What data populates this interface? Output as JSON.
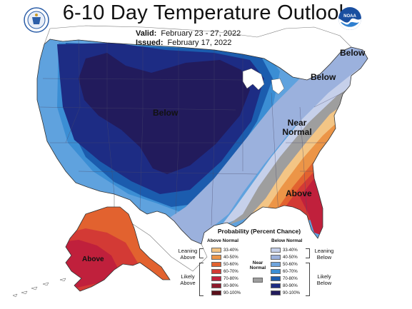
{
  "title": "6-10 Day Temperature Outlook",
  "valid": {
    "label": "Valid:",
    "value": "February 23 - 27, 2022"
  },
  "issued": {
    "label": "Issued:",
    "value": "February 17, 2022"
  },
  "logos": {
    "left": "doc-seal-icon",
    "right": "noaa-logo-icon",
    "right_text": "NOAA"
  },
  "region_labels": {
    "below_central": "Below",
    "below_maine": "Below",
    "below_ne": "Below",
    "near_normal_line1": "Near",
    "near_normal_line2": "Normal",
    "above_se": "Above",
    "above_alaska": "Above"
  },
  "legend": {
    "title": "Probability (Percent Chance)",
    "above_header": "Above Normal",
    "below_header": "Below Normal",
    "near_header_line1": "Near",
    "near_header_line2": "Normal",
    "leaning_above_line1": "Leaning",
    "leaning_above_line2": "Above",
    "likely_above_line1": "Likely",
    "likely_above_line2": "Above",
    "leaning_below_line1": "Leaning",
    "leaning_below_line2": "Below",
    "likely_below_line1": "Likely",
    "likely_below_line2": "Below",
    "above_bins": [
      {
        "label": "33-40%",
        "color": "#f3c585"
      },
      {
        "label": "40-50%",
        "color": "#ec9547"
      },
      {
        "label": "50-60%",
        "color": "#e2622f"
      },
      {
        "label": "60-70%",
        "color": "#d33a35"
      },
      {
        "label": "70-80%",
        "color": "#c0203c"
      },
      {
        "label": "80-90%",
        "color": "#8e1a2c"
      },
      {
        "label": "90-100%",
        "color": "#5a0f1a"
      }
    ],
    "below_bins": [
      {
        "label": "33-40%",
        "color": "#c6d0ea"
      },
      {
        "label": "40-50%",
        "color": "#9bb1dd"
      },
      {
        "label": "50-60%",
        "color": "#6fa5dd"
      },
      {
        "label": "60-70%",
        "color": "#3b8ed4"
      },
      {
        "label": "70-80%",
        "color": "#1b5cae"
      },
      {
        "label": "80-90%",
        "color": "#1d2c84"
      },
      {
        "label": "90-100%",
        "color": "#221b5c"
      }
    ],
    "near_color": "#9e9e9e"
  }
}
